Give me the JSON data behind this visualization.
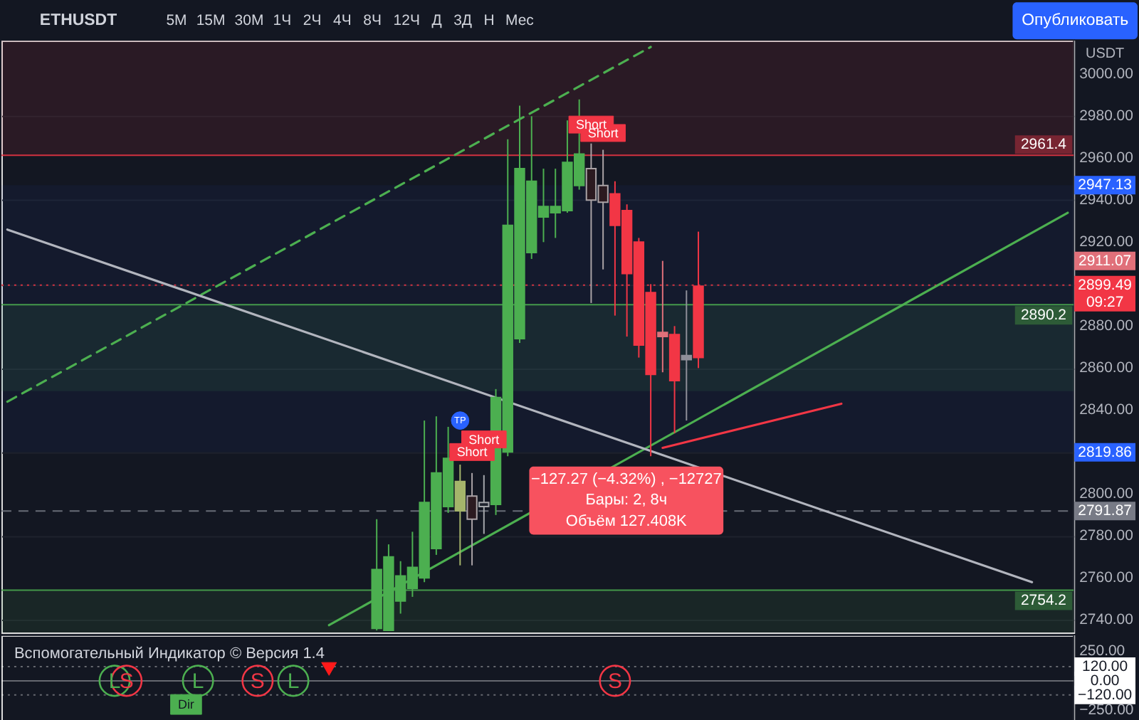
{
  "chart_data": [
    {
      "type": "candlestick",
      "title": "ETHUSDT",
      "ylabel": "USDT",
      "categories": [
        null,
        null,
        null,
        null,
        null,
        null,
        null,
        null,
        null,
        null,
        null,
        null,
        null,
        null,
        null,
        null,
        null,
        null,
        null,
        null,
        null,
        null,
        null,
        null,
        null,
        null,
        null,
        null,
        null,
        null,
        null,
        null,
        null,
        null,
        null,
        null,
        null,
        null,
        null,
        null,
        null,
        null,
        null,
        null,
        null,
        null,
        null,
        null,
        null,
        null,
        null,
        null,
        null,
        null,
        null,
        null,
        null,
        null,
        null,
        null,
        null,
        null,
        null,
        null,
        null,
        null,
        null,
        null,
        null,
        null,
        null,
        null,
        null,
        null,
        null,
        null,
        null,
        null,
        null,
        null,
        null,
        null,
        null,
        null,
        null,
        null,
        null,
        null,
        null,
        null
      ],
      "ohlc": [
        null,
        null,
        null,
        null,
        null,
        null,
        null,
        null,
        null,
        null,
        null,
        null,
        null,
        null,
        null,
        null,
        null,
        null,
        null,
        null,
        null,
        null,
        null,
        null,
        null,
        null,
        null,
        null,
        null,
        null,
        null,
        [
          2736,
          2788,
          2735,
          2764
        ],
        [
          2735,
          2776,
          2735,
          2770
        ],
        [
          2749,
          2768,
          2743,
          2761
        ],
        [
          2755,
          2782,
          2751,
          2765
        ],
        [
          2760,
          2835,
          2758,
          2796
        ],
        [
          2774,
          2837,
          2771,
          2810
        ],
        [
          2794,
          2832,
          2791,
          2817
        ],
        [
          2792,
          2814,
          2766,
          2806
        ],
        [
          2799,
          2810,
          2766,
          2788
        ],
        [
          2796,
          2809,
          2781,
          2794
        ],
        [
          2795,
          2850,
          2790,
          2846
        ],
        [
          2820,
          2969,
          2818,
          2928
        ],
        [
          2874,
          2985,
          2872,
          2955
        ],
        [
          2915,
          2980,
          2912,
          2949
        ],
        [
          2932,
          2955,
          2920,
          2937
        ],
        [
          2934,
          2955,
          2922,
          2937
        ],
        [
          2935,
          2978,
          2934,
          2958
        ],
        [
          2947,
          2988,
          2945,
          2962
        ],
        [
          2955,
          2967,
          2891,
          2940
        ],
        [
          2947,
          2964,
          2907,
          2939
        ],
        [
          2943,
          2949,
          2885,
          2928
        ],
        [
          2935,
          2938,
          2875,
          2905
        ],
        [
          2920,
          2922,
          2865,
          2871
        ],
        [
          2896,
          2900,
          2818,
          2857
        ],
        [
          2877,
          2911.07,
          2858,
          2875
        ],
        [
          2876,
          2880,
          2829,
          2854
        ],
        [
          2864,
          2897,
          2835,
          2866
        ],
        [
          2899,
          2925,
          2860,
          2865
        ],
        null,
        null,
        null,
        null,
        null,
        null,
        null,
        null,
        null,
        null,
        null,
        null,
        null,
        null,
        null,
        null,
        null,
        null,
        null,
        null,
        null,
        null,
        null,
        null,
        null,
        null,
        null,
        null,
        null,
        null,
        null
      ],
      "colors": [
        null,
        null,
        null,
        null,
        null,
        null,
        null,
        null,
        null,
        null,
        null,
        null,
        null,
        null,
        null,
        null,
        null,
        null,
        null,
        null,
        null,
        null,
        null,
        null,
        null,
        null,
        null,
        null,
        null,
        null,
        null,
        "#4caf50",
        "#4caf50",
        "#4caf50",
        "#4caf50",
        "#4caf50",
        "#4caf50",
        "#4caf50",
        "#a5b56b",
        "#2b1a20",
        "#1f232e",
        "#4caf50",
        "#4caf50",
        "#4caf50",
        "#4caf50",
        "#4caf50",
        "#4caf50",
        "#4caf50",
        "#4caf50",
        "#2b1a20",
        "#2b1a20",
        "#f23645",
        "#f23645",
        "#f23645",
        "#f23645",
        "#e0707a",
        "#f23645",
        "#8f8f99",
        "#f23645",
        null,
        null,
        null,
        null,
        null,
        null,
        null,
        null,
        null,
        null,
        null,
        null,
        null,
        null,
        null,
        null,
        null,
        null,
        null,
        null,
        null,
        null,
        null,
        null,
        null,
        null,
        null,
        null,
        null,
        null,
        null
      ],
      "series": [
        {
          "type": "line",
          "color": "#4caf50",
          "line_style": "dashed",
          "values": [
            2844,
            null,
            null,
            null,
            null,
            null,
            null,
            null,
            null,
            null,
            null,
            null,
            null,
            null,
            null,
            null,
            null,
            null,
            null,
            null,
            null,
            null,
            null,
            null,
            null,
            null,
            null,
            null,
            null,
            null,
            null,
            null,
            null,
            null,
            null,
            null,
            null,
            null,
            null,
            null,
            null,
            null,
            null,
            null,
            null,
            null,
            null,
            null,
            null,
            null,
            null,
            null,
            null,
            null,
            3013,
            null,
            null,
            null,
            null,
            null,
            null,
            null,
            null,
            null,
            null,
            null,
            null,
            null,
            null,
            null,
            null,
            null,
            null,
            null,
            null,
            null,
            null,
            null,
            null,
            null,
            null,
            null,
            null,
            null,
            null,
            null,
            null,
            null,
            null,
            null
          ]
        },
        {
          "type": "line",
          "color": "#4caf50",
          "line_style": "solid",
          "values": [
            null,
            null,
            null,
            null,
            null,
            null,
            null,
            null,
            null,
            null,
            null,
            null,
            null,
            null,
            null,
            null,
            null,
            null,
            null,
            null,
            null,
            null,
            null,
            null,
            null,
            null,
            null,
            2737.5,
            null,
            null,
            null,
            null,
            null,
            null,
            null,
            null,
            null,
            null,
            null,
            null,
            null,
            null,
            null,
            null,
            null,
            null,
            null,
            null,
            null,
            null,
            null,
            null,
            null,
            null,
            null,
            null,
            null,
            null,
            null,
            null,
            null,
            null,
            null,
            null,
            null,
            null,
            null,
            null,
            null,
            null,
            null,
            null,
            null,
            null,
            null,
            null,
            null,
            null,
            null,
            null,
            null,
            null,
            null,
            null,
            null,
            null,
            null,
            null,
            null,
            2934
          ]
        },
        {
          "type": "line",
          "color": "#b2b5be",
          "line_style": "solid",
          "values": [
            2926,
            null,
            null,
            null,
            null,
            null,
            null,
            null,
            null,
            null,
            null,
            null,
            null,
            null,
            null,
            null,
            null,
            null,
            null,
            null,
            null,
            null,
            null,
            null,
            null,
            null,
            null,
            null,
            null,
            null,
            null,
            null,
            null,
            null,
            null,
            null,
            null,
            null,
            null,
            null,
            null,
            null,
            null,
            null,
            null,
            null,
            null,
            null,
            null,
            null,
            null,
            null,
            null,
            null,
            null,
            null,
            null,
            null,
            null,
            null,
            null,
            null,
            null,
            null,
            null,
            null,
            null,
            null,
            null,
            null,
            null,
            null,
            null,
            null,
            null,
            null,
            null,
            null,
            null,
            null,
            null,
            null,
            null,
            null,
            null,
            null,
            2758,
            null,
            null,
            null
          ]
        },
        {
          "type": "line",
          "color": "#f23645",
          "line_style": "solid",
          "values": [
            null,
            null,
            null,
            null,
            null,
            null,
            null,
            null,
            null,
            null,
            null,
            null,
            null,
            null,
            null,
            null,
            null,
            null,
            null,
            null,
            null,
            null,
            null,
            null,
            null,
            null,
            null,
            null,
            null,
            null,
            null,
            null,
            null,
            null,
            null,
            null,
            null,
            null,
            null,
            null,
            null,
            null,
            null,
            null,
            null,
            null,
            null,
            null,
            null,
            null,
            null,
            null,
            null,
            null,
            null,
            2822,
            null,
            null,
            null,
            null,
            null,
            null,
            null,
            null,
            null,
            null,
            null,
            null,
            null,
            null,
            2843,
            null,
            null,
            null,
            null,
            null,
            null,
            null,
            null,
            null,
            null,
            null,
            null,
            null,
            null,
            null,
            null,
            null,
            null,
            null
          ]
        },
        {
          "name": "Short",
          "type": "scatter",
          "color": "#f23645",
          "marker": "square",
          "values": [
            null,
            null,
            null,
            null,
            null,
            null,
            null,
            null,
            null,
            null,
            null,
            null,
            null,
            null,
            null,
            null,
            null,
            null,
            null,
            null,
            null,
            null,
            null,
            null,
            null,
            null,
            null,
            null,
            null,
            null,
            null,
            null,
            null,
            null,
            null,
            null,
            null,
            null,
            null,
            2820,
            2826,
            null,
            null,
            null,
            null,
            null,
            null,
            null,
            null,
            2976,
            2972,
            null,
            null,
            null,
            null,
            null,
            null,
            null,
            null,
            null,
            null,
            null,
            null,
            null,
            null,
            null,
            null,
            null,
            null,
            null,
            null,
            null,
            null,
            null,
            null,
            null,
            null,
            null,
            null,
            null,
            null,
            null,
            null,
            null,
            null,
            null,
            null,
            null,
            null,
            null
          ]
        },
        {
          "name": "TP",
          "type": "scatter",
          "color": "#2962ff",
          "marker": "circle",
          "values": [
            null,
            null,
            null,
            null,
            null,
            null,
            null,
            null,
            null,
            null,
            null,
            null,
            null,
            null,
            null,
            null,
            null,
            null,
            null,
            null,
            null,
            null,
            null,
            null,
            null,
            null,
            null,
            null,
            null,
            null,
            null,
            null,
            null,
            null,
            null,
            null,
            null,
            null,
            2835,
            null,
            null,
            null,
            null,
            null,
            null,
            null,
            null,
            null,
            null,
            null,
            null,
            null,
            null,
            null,
            null,
            null,
            null,
            null,
            null,
            null,
            null,
            null,
            null,
            null,
            null,
            null,
            null,
            null,
            null,
            null,
            null,
            null,
            null,
            null,
            null,
            null,
            null,
            null,
            null,
            null,
            null,
            null,
            null,
            null,
            null,
            null,
            null,
            null,
            null,
            null
          ]
        }
      ],
      "ylim": [
        2734,
        3016
      ],
      "yticks": [
        {
          "value": 2740,
          "label": "2740.00"
        },
        {
          "value": 2760,
          "label": "2760.00"
        },
        {
          "value": 2780,
          "label": "2780.00"
        },
        {
          "value": 2800,
          "label": "2800.00"
        },
        {
          "value": 2820,
          "label": null
        },
        {
          "value": 2840,
          "label": "2840.00"
        },
        {
          "value": 2860,
          "label": "2860.00"
        },
        {
          "value": 2880,
          "label": "2880.00"
        },
        {
          "value": 2900,
          "label": null
        },
        {
          "value": 2920,
          "label": "2920.00"
        },
        {
          "value": 2940,
          "label": "2940.00"
        },
        {
          "value": 2960,
          "label": "2960.00"
        },
        {
          "value": 2980,
          "label": "2980.00"
        },
        {
          "value": 3000,
          "label": "3000.00"
        }
      ],
      "grid": "y",
      "tick_labels": "y",
      "ref_lines": [
        {
          "axis": "y",
          "value": 2961.4,
          "label": "2961.4",
          "color": "#f23645",
          "line_style": "solid"
        },
        {
          "axis": "y",
          "value": 2899.49,
          "label": "2899.49\n09:27",
          "color": "#f23645",
          "line_style": "dotted"
        },
        {
          "axis": "y",
          "value": 2890.2,
          "label": "2890.2",
          "color": "#4caf50",
          "line_style": "solid"
        },
        {
          "axis": "y",
          "value": 2791.87,
          "label": "2791.87",
          "color": "#787b86",
          "line_style": "dashed"
        },
        {
          "axis": "y",
          "value": 2754.2,
          "label": "2754.2",
          "color": "#4caf50",
          "line_style": "solid"
        }
      ],
      "bands": [
        {
          "axis": "y",
          "from": 2961.4,
          "to": 3016,
          "color": "#f23645"
        },
        {
          "axis": "y",
          "from": 2890.2,
          "to": 2849,
          "color": "#4caf50"
        },
        {
          "axis": "y",
          "from": 2754.2,
          "to": 2734,
          "color": "#4caf50"
        },
        {
          "axis": "y",
          "from": 2947.13,
          "to": 2819.86,
          "color": "#2962ff"
        }
      ],
      "annotations": [
        "5M",
        "15M",
        "30M",
        "1Ч",
        "2Ч",
        "4Ч",
        "8Ч",
        "12Ч",
        "Д",
        "3Д",
        "Н",
        "Мес",
        "Опубликовать",
        "−127.27 (−4.32%) , −12727\nБары: 2, 8ч\nОбъём 127.408K",
        {
          "text": "2947.13",
          "y": 2947.13
        },
        {
          "text": "2911.07",
          "y": 2911.07
        },
        {
          "text": "2819.86",
          "y": 2819.86
        }
      ]
    },
    {
      "type": "scatter",
      "title": "Вспомогательный Индикатор © Версия 1.4",
      "marker": "circle",
      "categories": [
        null,
        null,
        null,
        null,
        null,
        null,
        null,
        null,
        null,
        null,
        null,
        null,
        null,
        null,
        null,
        null,
        null,
        null,
        null,
        null,
        null,
        null,
        null,
        null,
        null,
        null,
        null,
        null,
        null,
        null,
        null,
        null,
        null,
        null,
        null,
        null,
        null,
        null,
        null,
        null,
        null,
        null,
        null,
        null,
        null,
        null,
        null,
        null,
        null,
        null,
        null,
        null,
        null,
        null,
        null,
        null,
        null,
        null,
        null,
        null,
        null,
        null,
        null,
        null,
        null,
        null,
        null,
        null,
        null,
        null,
        null,
        null,
        null,
        null,
        null,
        null,
        null,
        null,
        null,
        null,
        null,
        null,
        null,
        null,
        null,
        null,
        null,
        null,
        null,
        null
      ],
      "series": [
        {
          "name": "L",
          "color": "#4caf50",
          "values": [
            null,
            null,
            null,
            null,
            null,
            null,
            null,
            null,
            null,
            0,
            null,
            null,
            null,
            null,
            null,
            null,
            0,
            null,
            null,
            null,
            null,
            null,
            null,
            null,
            0,
            null,
            null,
            null,
            null,
            null,
            null,
            null,
            null,
            null,
            null,
            null,
            null,
            null,
            null,
            null,
            null,
            null,
            null,
            null,
            null,
            null,
            null,
            null,
            null,
            null,
            null,
            null,
            null,
            null,
            null,
            null,
            null,
            null,
            null,
            null,
            null,
            null,
            null,
            null,
            null,
            null,
            null,
            null,
            null,
            null,
            null,
            null,
            null,
            null,
            null,
            null,
            null,
            null,
            null,
            null,
            null,
            null,
            null,
            null,
            null,
            null,
            null,
            null,
            null,
            null
          ]
        },
        {
          "name": "S",
          "color": "#f23645",
          "values": [
            null,
            null,
            null,
            null,
            null,
            null,
            null,
            null,
            null,
            null,
            0,
            null,
            null,
            null,
            null,
            null,
            null,
            null,
            null,
            null,
            null,
            0,
            null,
            null,
            null,
            null,
            null,
            null,
            null,
            null,
            null,
            null,
            null,
            null,
            null,
            null,
            null,
            null,
            null,
            null,
            null,
            null,
            null,
            null,
            null,
            null,
            null,
            null,
            null,
            null,
            null,
            0,
            null,
            null,
            null,
            null,
            null,
            null,
            null,
            null,
            null,
            null,
            null,
            null,
            null,
            null,
            null,
            null,
            null,
            null,
            null,
            null,
            null,
            null,
            null,
            null,
            null,
            null,
            null,
            null,
            null,
            null,
            null,
            null,
            null,
            null,
            null,
            null,
            null,
            null
          ]
        },
        {
          "name": "Dir",
          "color": "#4caf50",
          "marker": "square",
          "values": [
            null,
            null,
            null,
            null,
            null,
            null,
            null,
            null,
            null,
            null,
            null,
            null,
            null,
            null,
            null,
            -200,
            null,
            null,
            null,
            null,
            null,
            null,
            null,
            null,
            null,
            null,
            null,
            null,
            null,
            null,
            null,
            null,
            null,
            null,
            null,
            null,
            null,
            null,
            null,
            null,
            null,
            null,
            null,
            null,
            null,
            null,
            null,
            null,
            null,
            null,
            null,
            null,
            null,
            null,
            null,
            null,
            null,
            null,
            null,
            null,
            null,
            null,
            null,
            null,
            null,
            null,
            null,
            null,
            null,
            null,
            null,
            null,
            null,
            null,
            null,
            null,
            null,
            null,
            null,
            null,
            null,
            null,
            null,
            null,
            null,
            null,
            null,
            null,
            null,
            null
          ]
        },
        {
          "color": "#ff1a1a",
          "marker": "triangle",
          "values": [
            null,
            null,
            null,
            null,
            null,
            null,
            null,
            null,
            null,
            null,
            null,
            null,
            null,
            null,
            null,
            null,
            null,
            null,
            null,
            null,
            null,
            null,
            null,
            null,
            null,
            null,
            null,
            100,
            null,
            null,
            null,
            null,
            null,
            null,
            null,
            null,
            null,
            null,
            null,
            null,
            null,
            null,
            null,
            null,
            null,
            null,
            null,
            null,
            null,
            null,
            null,
            null,
            null,
            null,
            null,
            null,
            null,
            null,
            null,
            null,
            null,
            null,
            null,
            null,
            null,
            null,
            null,
            null,
            null,
            null,
            null,
            null,
            null,
            null,
            null,
            null,
            null,
            null,
            null,
            null,
            null,
            null,
            null,
            null,
            null,
            null,
            null,
            null,
            null,
            null
          ]
        }
      ],
      "ylim": [
        -348,
        384
      ],
      "yticks": [
        {
          "value": 250,
          "label": "250.00"
        },
        {
          "value": -250,
          "label": "−250.00"
        }
      ],
      "tick_labels": "y",
      "ref_lines": [
        {
          "axis": "y",
          "value": 120,
          "label": "120.00",
          "color": "#ffffff",
          "line_style": "dotted"
        },
        {
          "axis": "y",
          "value": 0,
          "label": "0.00",
          "color": "#ffffff",
          "line_style": "solid"
        },
        {
          "axis": "y",
          "value": -120,
          "label": "−120.00",
          "color": "#ffffff",
          "line_style": "dotted"
        }
      ]
    }
  ]
}
